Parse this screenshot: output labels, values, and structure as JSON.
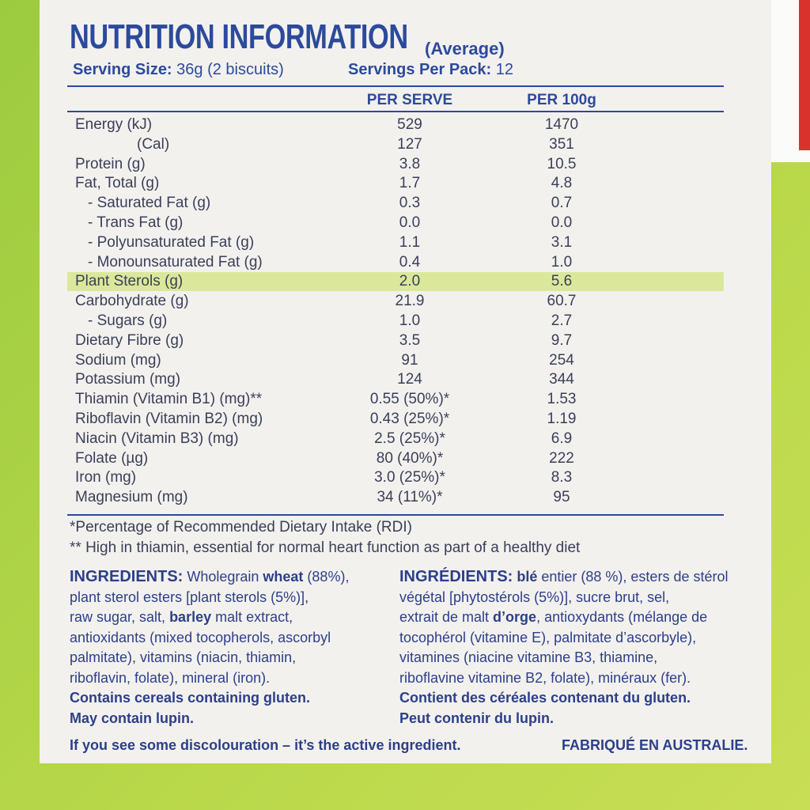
{
  "header": {
    "title": "NUTRITION INFORMATION",
    "subtitle": "(Average)",
    "serving_size": {
      "label": "Serving Size:",
      "value": " 36g (2 biscuits)"
    },
    "servings_per_pack": {
      "label": "Servings Per Pack:",
      "value": " 12"
    }
  },
  "table": {
    "columns": [
      "PER SERVE",
      "PER 100g"
    ],
    "rows": [
      [
        "Energy (kJ)",
        "529",
        "1470"
      ],
      [
        "(Cal)",
        "127",
        "351"
      ],
      [
        "Protein (g)",
        "3.8",
        "10.5"
      ],
      [
        "Fat, Total (g)",
        "1.7",
        "4.8"
      ],
      [
        "- Saturated Fat (g)",
        "0.3",
        "0.7"
      ],
      [
        "- Trans Fat (g)",
        "0.0",
        "0.0"
      ],
      [
        "- Polyunsaturated Fat (g)",
        "1.1",
        "3.1"
      ],
      [
        "- Monounsaturated Fat (g)",
        "0.4",
        "1.0"
      ],
      [
        "Plant Sterols (g)",
        "2.0",
        "5.6"
      ],
      [
        "Carbohydrate (g)",
        "21.9",
        "60.7"
      ],
      [
        "- Sugars (g)",
        "1.0",
        "2.7"
      ],
      [
        "Dietary Fibre (g)",
        "3.5",
        "9.7"
      ],
      [
        "Sodium (mg)",
        "91",
        "254"
      ],
      [
        "Potassium (mg)",
        "124",
        "344"
      ],
      [
        "Thiamin (Vitamin B1) (mg)**",
        "0.55 (50%)*",
        "1.53"
      ],
      [
        "Riboflavin (Vitamin B2) (mg)",
        "0.43 (25%)*",
        "1.19"
      ],
      [
        "Niacin (Vitamin B3) (mg)",
        "2.5 (25%)*",
        "6.9"
      ],
      [
        "Folate (µg)",
        "80 (40%)*",
        "222"
      ],
      [
        "Iron (mg)",
        "3.0 (25%)*",
        "8.3"
      ],
      [
        "Magnesium (mg)",
        "34 (11%)*",
        "95"
      ]
    ]
  },
  "footnotes": [
    "*Percentage of Recommended Dietary Intake (RDI)",
    "** High in thiamin, essential for normal heart function as part of a healthy diet"
  ],
  "ingredients_en": {
    "heading": "INGREDIENTS:",
    "lines": [
      [
        " Wholegrain ",
        {
          "text": "wheat",
          "bold": true
        },
        " (88%),"
      ],
      [
        "plant sterol esters [plant sterols (5%)],"
      ],
      [
        "raw sugar, salt, ",
        {
          "text": "barley",
          "bold": true
        },
        " malt extract,"
      ],
      [
        "antioxidants (mixed tocopherols, ascorbyl"
      ],
      [
        "palmitate), vitamins (niacin, thiamin,"
      ],
      [
        "riboflavin, folate), mineral (iron)."
      ]
    ],
    "allergens": [
      "Contains cereals containing gluten.",
      "May contain lupin."
    ]
  },
  "ingredients_fr": {
    "heading": "INGRÉDIENTS:",
    "lines": [
      [
        " ",
        {
          "text": "blé",
          "bold": true
        },
        " entier (88 %), esters de stérol"
      ],
      [
        "végétal [phytostérols (5%)], sucre brut, sel,"
      ],
      [
        "extrait de malt ",
        {
          "text": "d’orge",
          "bold": true
        },
        ", antioxydants (mélange de"
      ],
      [
        "tocophérol (vitamine E), palmitate d’ascorbyle),"
      ],
      [
        "vitamines (niacine vitamine B3, thiamine,"
      ],
      [
        "riboflavine vitamine B2, folate), minéraux (fer)."
      ]
    ],
    "allergens": [
      "Contient des céréales contenant du gluten.",
      "Peut contenir du lupin."
    ]
  },
  "footer": {
    "left": "If you see some discolouration – it’s the active ingredient.",
    "right": "FABRIQUÉ EN AUSTRALIE."
  }
}
